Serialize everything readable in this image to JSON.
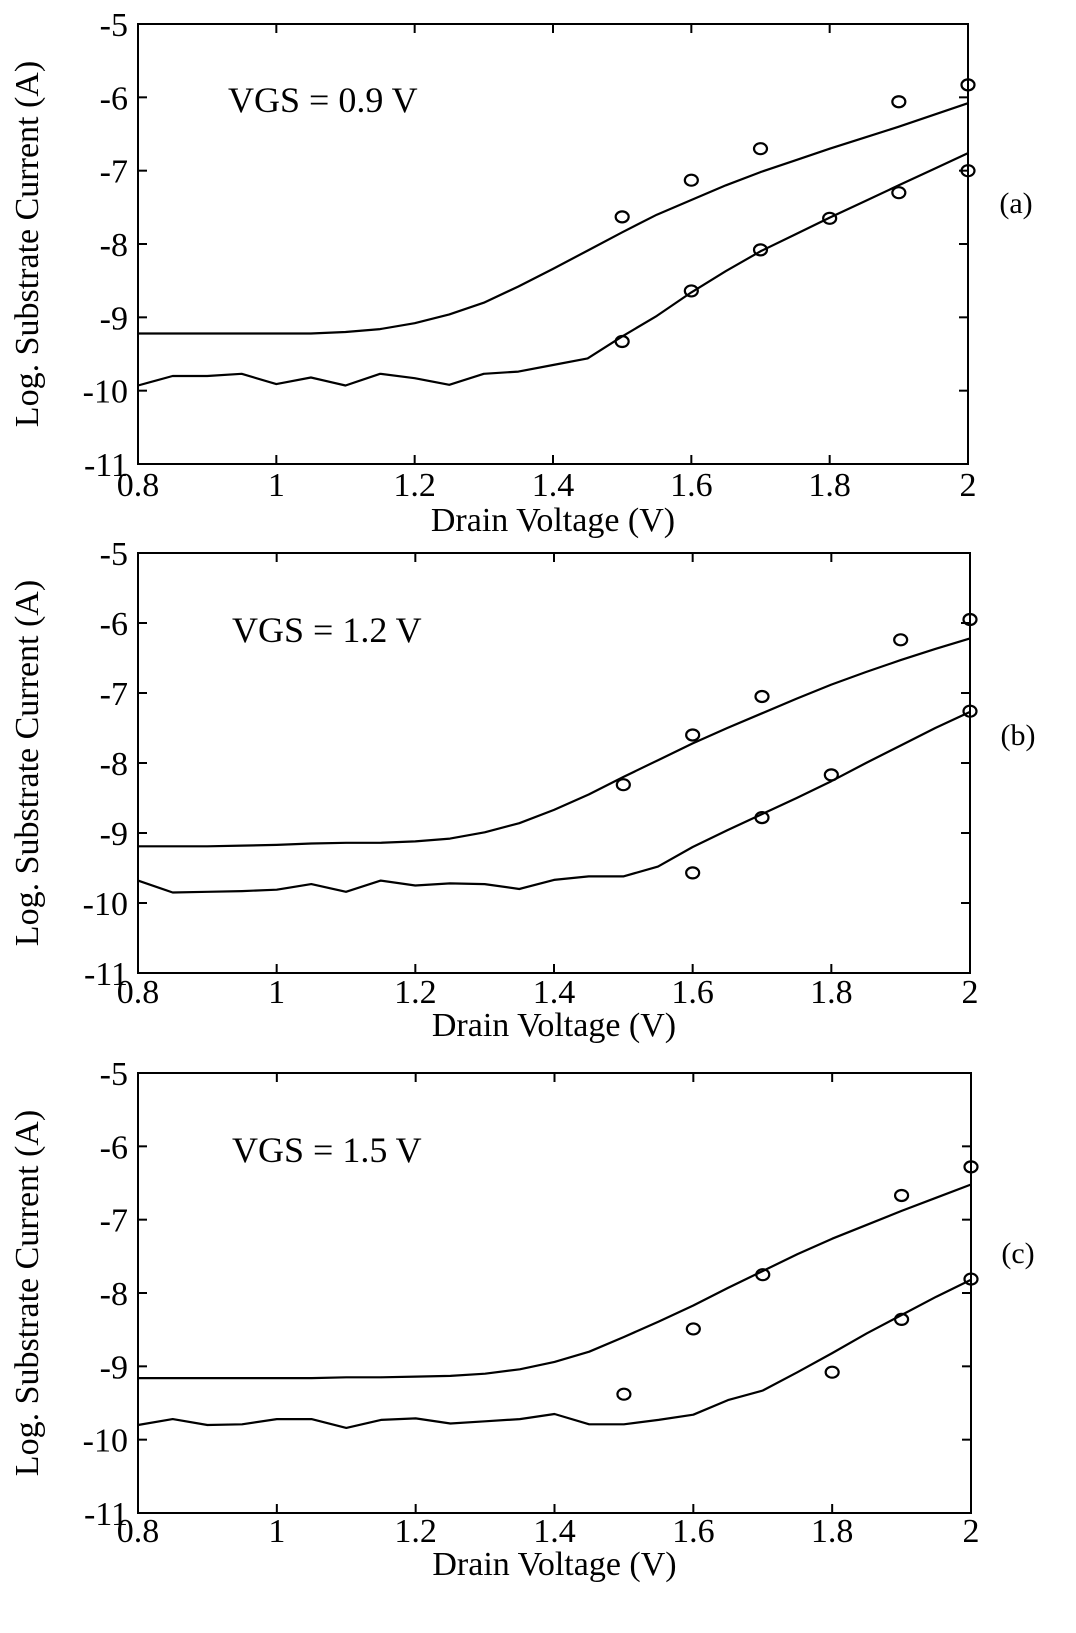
{
  "chart_data": [
    {
      "type": "line",
      "panel_label": "(a)",
      "annotation": "VGS = 0.9 V",
      "xlabel": "Drain Voltage (V)",
      "ylabel": "Log. Substrate Current (A)",
      "xlim": [
        0.8,
        2
      ],
      "ylim": [
        -11,
        -5
      ],
      "xticks": [
        "0.8",
        "1",
        "1.2",
        "1.4",
        "1.6",
        "1.8",
        "2"
      ],
      "yticks": [
        "-11",
        "-10",
        "-9",
        "-8",
        "-7",
        "-6",
        "-5"
      ],
      "series": [
        {
          "style": "line",
          "x": [
            0.8,
            0.85,
            0.9,
            0.95,
            1.0,
            1.05,
            1.1,
            1.15,
            1.2,
            1.25,
            1.3,
            1.35,
            1.4,
            1.45,
            1.5,
            1.55,
            1.6,
            1.65,
            1.7,
            1.75,
            1.8,
            1.85,
            1.9,
            1.95,
            2.0
          ],
          "y": [
            -9.22,
            -9.22,
            -9.22,
            -9.22,
            -9.22,
            -9.22,
            -9.2,
            -9.16,
            -9.08,
            -8.96,
            -8.8,
            -8.58,
            -8.34,
            -8.09,
            -7.84,
            -7.6,
            -7.4,
            -7.2,
            -7.02,
            -6.86,
            -6.7,
            -6.55,
            -6.4,
            -6.24,
            -6.08
          ]
        },
        {
          "style": "line",
          "x": [
            0.8,
            0.85,
            0.9,
            0.95,
            1.0,
            1.05,
            1.1,
            1.15,
            1.2,
            1.25,
            1.3,
            1.35,
            1.4,
            1.45,
            1.5,
            1.55,
            1.6,
            1.65,
            1.7,
            1.75,
            1.8,
            1.85,
            1.9,
            1.95,
            2.0
          ],
          "y": [
            -9.93,
            -9.8,
            -9.8,
            -9.77,
            -9.91,
            -9.82,
            -9.93,
            -9.77,
            -9.83,
            -9.92,
            -9.77,
            -9.74,
            -9.65,
            -9.56,
            -9.26,
            -8.98,
            -8.66,
            -8.37,
            -8.1,
            -7.87,
            -7.64,
            -7.42,
            -7.2,
            -6.98,
            -6.76
          ]
        },
        {
          "style": "markers",
          "marker": "circle",
          "x": [
            1.5,
            1.6,
            1.7,
            1.9,
            2.0
          ],
          "y": [
            -7.63,
            -7.13,
            -6.7,
            -6.06,
            -5.83
          ]
        },
        {
          "style": "markers",
          "marker": "circle",
          "x": [
            1.5,
            1.6,
            1.7,
            1.8,
            1.9,
            2.0
          ],
          "y": [
            -9.33,
            -8.64,
            -8.08,
            -7.65,
            -7.3,
            -7.0
          ]
        }
      ]
    },
    {
      "type": "line",
      "panel_label": "(b)",
      "annotation": "VGS = 1.2 V",
      "xlabel": "Drain Voltage (V)",
      "ylabel": "Log. Substrate Current (A)",
      "xlim": [
        0.8,
        2
      ],
      "ylim": [
        -11,
        -5
      ],
      "xticks": [
        "0.8",
        "1",
        "1.2",
        "1.4",
        "1.6",
        "1.8",
        "2"
      ],
      "yticks": [
        "-11",
        "-10",
        "-9",
        "-8",
        "-7",
        "-6",
        "-5"
      ],
      "series": [
        {
          "style": "line",
          "x": [
            0.8,
            0.85,
            0.9,
            0.95,
            1.0,
            1.05,
            1.1,
            1.15,
            1.2,
            1.25,
            1.3,
            1.35,
            1.4,
            1.45,
            1.5,
            1.55,
            1.6,
            1.65,
            1.7,
            1.75,
            1.8,
            1.85,
            1.9,
            1.95,
            2.0
          ],
          "y": [
            -9.19,
            -9.19,
            -9.19,
            -9.18,
            -9.17,
            -9.15,
            -9.14,
            -9.14,
            -9.12,
            -9.08,
            -8.99,
            -8.86,
            -8.67,
            -8.45,
            -8.2,
            -7.96,
            -7.72,
            -7.5,
            -7.29,
            -7.08,
            -6.88,
            -6.7,
            -6.53,
            -6.37,
            -6.22
          ]
        },
        {
          "style": "line",
          "x": [
            0.8,
            0.85,
            0.9,
            0.95,
            1.0,
            1.05,
            1.1,
            1.15,
            1.2,
            1.25,
            1.3,
            1.35,
            1.4,
            1.45,
            1.5,
            1.55,
            1.6,
            1.65,
            1.7,
            1.75,
            1.8,
            1.85,
            1.9,
            1.95,
            2.0
          ],
          "y": [
            -9.68,
            -9.85,
            -9.84,
            -9.83,
            -9.81,
            -9.73,
            -9.84,
            -9.68,
            -9.75,
            -9.72,
            -9.73,
            -9.8,
            -9.67,
            -9.62,
            -9.62,
            -9.48,
            -9.2,
            -8.96,
            -8.73,
            -8.5,
            -8.26,
            -8.0,
            -7.75,
            -7.5,
            -7.27
          ]
        },
        {
          "style": "markers",
          "marker": "circle",
          "x": [
            1.5,
            1.6,
            1.7,
            1.9,
            2.0
          ],
          "y": [
            -8.31,
            -7.6,
            -7.05,
            -6.24,
            -5.95
          ]
        },
        {
          "style": "markers",
          "marker": "circle",
          "x": [
            1.6,
            1.7,
            1.8,
            2.0
          ],
          "y": [
            -9.57,
            -8.78,
            -8.17,
            -7.26
          ]
        }
      ]
    },
    {
      "type": "line",
      "panel_label": "(c)",
      "annotation": "VGS = 1.5 V",
      "xlabel": "Drain Voltage (V)",
      "ylabel": "Log. Substrate Current (A)",
      "xlim": [
        0.8,
        2
      ],
      "ylim": [
        -11,
        -5
      ],
      "xticks": [
        "0.8",
        "1",
        "1.2",
        "1.4",
        "1.6",
        "1.8",
        "2"
      ],
      "yticks": [
        "-11",
        "-10",
        "-9",
        "-8",
        "-7",
        "-6",
        "-5"
      ],
      "series": [
        {
          "style": "line",
          "x": [
            0.8,
            0.85,
            0.9,
            0.95,
            1.0,
            1.05,
            1.1,
            1.15,
            1.2,
            1.25,
            1.3,
            1.35,
            1.4,
            1.45,
            1.5,
            1.55,
            1.6,
            1.65,
            1.7,
            1.75,
            1.8,
            1.85,
            1.9,
            1.95,
            2.0
          ],
          "y": [
            -9.16,
            -9.16,
            -9.16,
            -9.16,
            -9.16,
            -9.16,
            -9.15,
            -9.15,
            -9.14,
            -9.13,
            -9.1,
            -9.04,
            -8.94,
            -8.8,
            -8.6,
            -8.39,
            -8.17,
            -7.93,
            -7.7,
            -7.47,
            -7.26,
            -7.07,
            -6.88,
            -6.7,
            -6.52
          ]
        },
        {
          "style": "line",
          "x": [
            0.8,
            0.85,
            0.9,
            0.95,
            1.0,
            1.05,
            1.1,
            1.15,
            1.2,
            1.25,
            1.3,
            1.35,
            1.4,
            1.45,
            1.5,
            1.55,
            1.6,
            1.65,
            1.7,
            1.75,
            1.8,
            1.85,
            1.9,
            1.95,
            2.0
          ],
          "y": [
            -9.8,
            -9.72,
            -9.8,
            -9.79,
            -9.72,
            -9.72,
            -9.84,
            -9.73,
            -9.71,
            -9.78,
            -9.75,
            -9.72,
            -9.65,
            -9.79,
            -9.79,
            -9.73,
            -9.66,
            -9.46,
            -9.33,
            -9.08,
            -8.82,
            -8.55,
            -8.3,
            -8.05,
            -7.82
          ]
        },
        {
          "style": "markers",
          "marker": "circle",
          "x": [
            1.5,
            1.6,
            1.7,
            1.9,
            2.0
          ],
          "y": [
            -9.38,
            -8.49,
            -7.75,
            -6.67,
            -6.28
          ]
        },
        {
          "style": "markers",
          "marker": "circle",
          "x": [
            1.8,
            1.9,
            2.0
          ],
          "y": [
            -9.08,
            -8.36,
            -7.81
          ]
        }
      ]
    }
  ]
}
